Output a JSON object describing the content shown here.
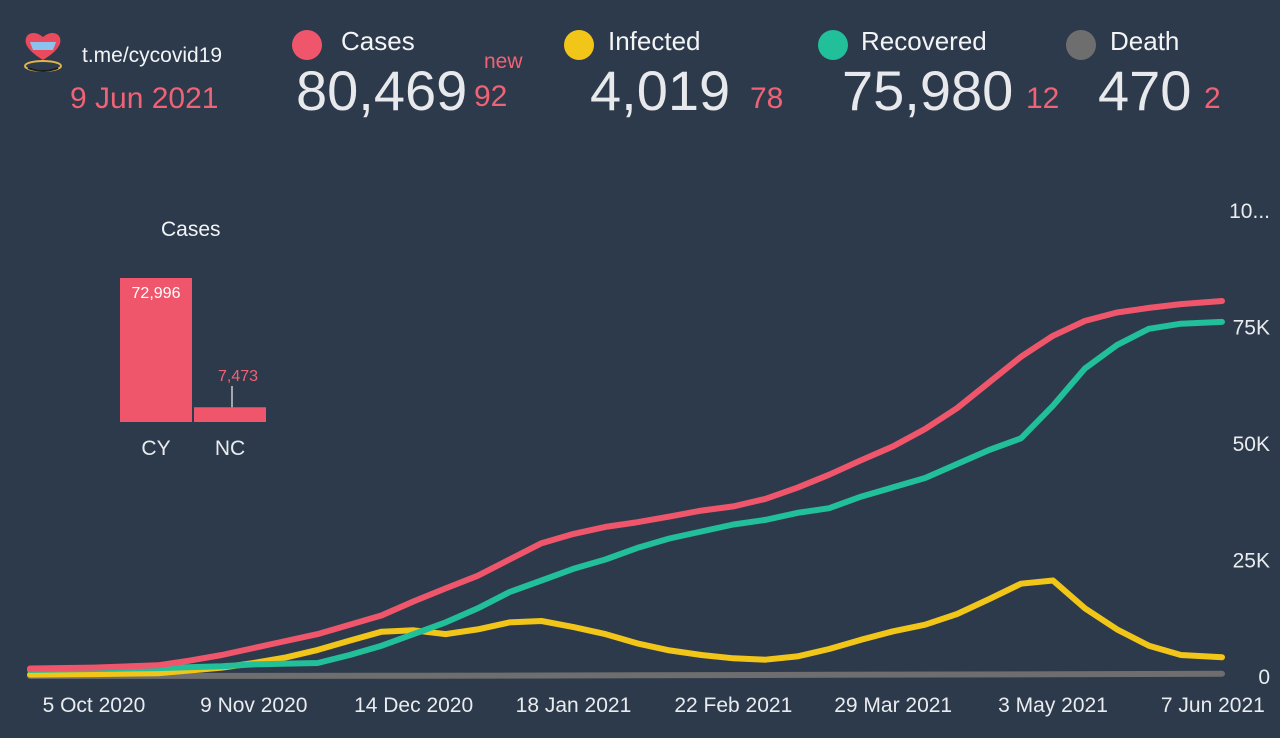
{
  "header": {
    "channel": "t.me/cycovid19",
    "date": "9 Jun 2021",
    "new_label": "new"
  },
  "stats": [
    {
      "label": "Cases",
      "value": "80,469",
      "delta": "92",
      "color": "#f0566b"
    },
    {
      "label": "Infected",
      "value": "4,019",
      "delta": "78",
      "color": "#f2c618"
    },
    {
      "label": "Recovered",
      "value": "75,980",
      "delta": "12",
      "color": "#21bf9a"
    },
    {
      "label": "Death",
      "value": "470",
      "delta": "2",
      "color": "#6e6e6e"
    }
  ],
  "colors": {
    "background": "#2d3a4b",
    "cases": "#f0566b",
    "infected": "#f2c618",
    "recovered": "#21bf9a",
    "death": "#6e6e6e",
    "accent_text": "#f06275"
  },
  "chart_data": [
    {
      "type": "line",
      "x_ticks": [
        "5 Oct 2020",
        "9 Nov 2020",
        "14 Dec 2020",
        "18 Jan 2021",
        "22 Feb 2021",
        "29 Mar 2021",
        "3 May 2021",
        "7 Jun 2021"
      ],
      "y_ticks": [
        "0",
        "25K",
        "50K",
        "75K",
        "10..."
      ],
      "ylim": [
        0,
        100000
      ],
      "grid": false,
      "legend": "top",
      "series": [
        {
          "name": "Cases",
          "points": [
            [
              "2020-09-21",
              1600
            ],
            [
              "2020-10-05",
              1800
            ],
            [
              "2020-10-19",
              2300
            ],
            [
              "2020-10-26",
              3300
            ],
            [
              "2020-11-02",
              4500
            ],
            [
              "2020-11-09",
              6000
            ],
            [
              "2020-11-16",
              7500
            ],
            [
              "2020-11-23",
              9000
            ],
            [
              "2020-11-30",
              11000
            ],
            [
              "2020-12-07",
              13000
            ],
            [
              "2020-12-14",
              16000
            ],
            [
              "2020-12-21",
              18800
            ],
            [
              "2020-12-28",
              21500
            ],
            [
              "2021-01-04",
              25000
            ],
            [
              "2021-01-11",
              28500
            ],
            [
              "2021-01-18",
              30500
            ],
            [
              "2021-01-25",
              32000
            ],
            [
              "2021-02-01",
              33000
            ],
            [
              "2021-02-08",
              34200
            ],
            [
              "2021-02-15",
              35500
            ],
            [
              "2021-02-22",
              36400
            ],
            [
              "2021-03-01",
              38000
            ],
            [
              "2021-03-08",
              40400
            ],
            [
              "2021-03-15",
              43200
            ],
            [
              "2021-03-22",
              46300
            ],
            [
              "2021-03-29",
              49300
            ],
            [
              "2021-04-05",
              53000
            ],
            [
              "2021-04-12",
              57500
            ],
            [
              "2021-04-19",
              63000
            ],
            [
              "2021-04-26",
              68500
            ],
            [
              "2021-05-03",
              73000
            ],
            [
              "2021-05-10",
              76200
            ],
            [
              "2021-05-17",
              78000
            ],
            [
              "2021-05-24",
              79000
            ],
            [
              "2021-05-31",
              79800
            ],
            [
              "2021-06-09",
              80469
            ]
          ]
        },
        {
          "name": "Recovered",
          "points": [
            [
              "2020-09-21",
              1300
            ],
            [
              "2020-10-05",
              1500
            ],
            [
              "2020-10-19",
              1700
            ],
            [
              "2020-11-02",
              2100
            ],
            [
              "2020-11-09",
              2500
            ],
            [
              "2020-11-23",
              2800
            ],
            [
              "2020-11-30",
              4500
            ],
            [
              "2020-12-07",
              6500
            ],
            [
              "2020-12-14",
              9000
            ],
            [
              "2020-12-21",
              11500
            ],
            [
              "2020-12-28",
              14500
            ],
            [
              "2021-01-04",
              18000
            ],
            [
              "2021-01-11",
              20500
            ],
            [
              "2021-01-18",
              23000
            ],
            [
              "2021-01-25",
              25000
            ],
            [
              "2021-02-01",
              27500
            ],
            [
              "2021-02-08",
              29500
            ],
            [
              "2021-02-15",
              31000
            ],
            [
              "2021-02-22",
              32500
            ],
            [
              "2021-03-01",
              33500
            ],
            [
              "2021-03-08",
              35000
            ],
            [
              "2021-03-15",
              36000
            ],
            [
              "2021-03-22",
              38500
            ],
            [
              "2021-03-29",
              40500
            ],
            [
              "2021-04-05",
              42500
            ],
            [
              "2021-04-12",
              45500
            ],
            [
              "2021-04-19",
              48500
            ],
            [
              "2021-04-26",
              51000
            ],
            [
              "2021-05-03",
              58000
            ],
            [
              "2021-05-10",
              66000
            ],
            [
              "2021-05-17",
              71000
            ],
            [
              "2021-05-24",
              74500
            ],
            [
              "2021-05-31",
              75600
            ],
            [
              "2021-06-09",
              75980
            ]
          ]
        },
        {
          "name": "Infected",
          "points": [
            [
              "2020-09-21",
              300
            ],
            [
              "2020-10-05",
              400
            ],
            [
              "2020-10-19",
              600
            ],
            [
              "2020-11-02",
              1800
            ],
            [
              "2020-11-09",
              2800
            ],
            [
              "2020-11-16",
              4000
            ],
            [
              "2020-11-23",
              5600
            ],
            [
              "2020-11-30",
              7600
            ],
            [
              "2020-12-07",
              9500
            ],
            [
              "2020-12-14",
              9800
            ],
            [
              "2020-12-21",
              9000
            ],
            [
              "2020-12-28",
              10000
            ],
            [
              "2021-01-04",
              11500
            ],
            [
              "2021-01-11",
              11800
            ],
            [
              "2021-01-18",
              10500
            ],
            [
              "2021-01-25",
              9000
            ],
            [
              "2021-02-01",
              7000
            ],
            [
              "2021-02-08",
              5500
            ],
            [
              "2021-02-15",
              4500
            ],
            [
              "2021-02-22",
              3800
            ],
            [
              "2021-03-01",
              3500
            ],
            [
              "2021-03-08",
              4200
            ],
            [
              "2021-03-15",
              5800
            ],
            [
              "2021-03-22",
              7800
            ],
            [
              "2021-03-29",
              9600
            ],
            [
              "2021-04-05",
              11000
            ],
            [
              "2021-04-12",
              13300
            ],
            [
              "2021-04-19",
              16500
            ],
            [
              "2021-04-26",
              19800
            ],
            [
              "2021-05-03",
              20500
            ],
            [
              "2021-05-10",
              14500
            ],
            [
              "2021-05-17",
              10000
            ],
            [
              "2021-05-24",
              6500
            ],
            [
              "2021-05-31",
              4500
            ],
            [
              "2021-06-09",
              4019
            ]
          ]
        },
        {
          "name": "Death",
          "points": [
            [
              "2020-09-21",
              20
            ],
            [
              "2020-12-14",
              50
            ],
            [
              "2021-03-15",
              250
            ],
            [
              "2021-06-09",
              470
            ]
          ]
        }
      ]
    },
    {
      "type": "bar",
      "title": "Cases",
      "categories": [
        "CY",
        "NC"
      ],
      "values": [
        72996,
        7473
      ],
      "value_labels": [
        "72,996",
        "7,473"
      ]
    }
  ]
}
